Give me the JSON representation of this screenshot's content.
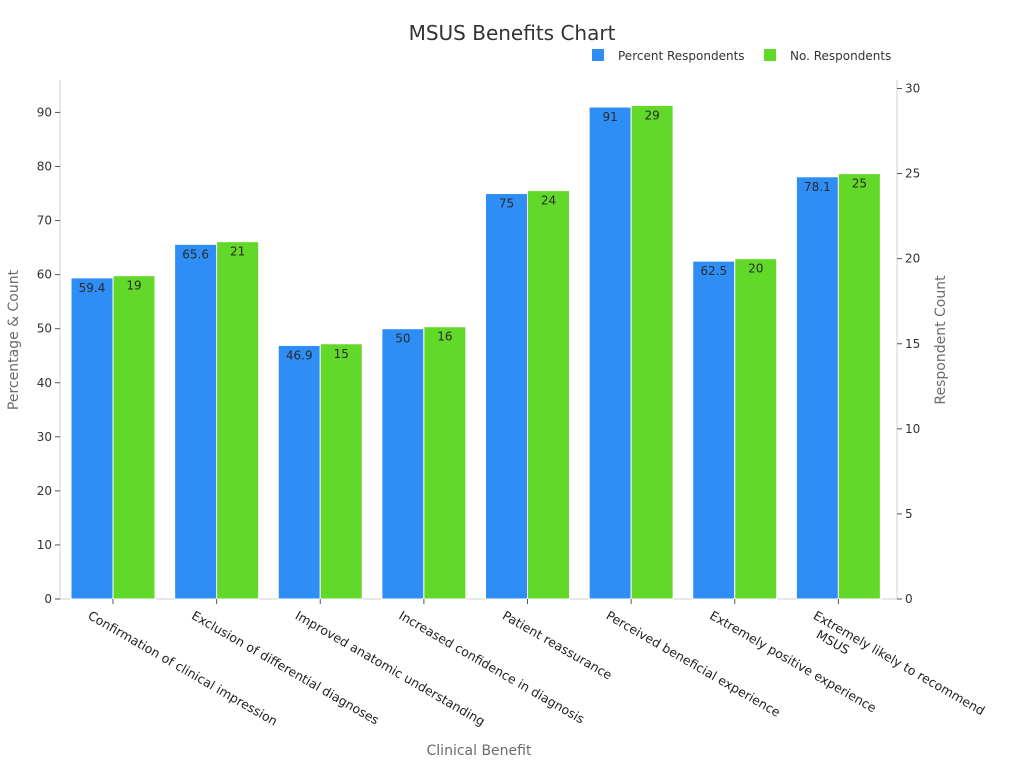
{
  "chart_data": {
    "type": "bar",
    "title": "MSUS Benefits Chart",
    "xlabel": "Clinical Benefit",
    "ylabel": "Percentage & Count",
    "y2label": "Respondent Count",
    "categories": [
      "Confirmation of clinical impression",
      "Exclusion of differential diagnoses",
      "Improved anatomic understanding",
      "Increased confidence in diagnosis",
      "Patient reassurance",
      "Perceived beneficial experience",
      "Extremely positive experience",
      "Extremely likely to recommend MSUS"
    ],
    "category_display": [
      [
        "Confirmation of clinical impression"
      ],
      [
        "Exclusion of differential diagnoses"
      ],
      [
        "Improved anatomic understanding"
      ],
      [
        "Increased confidence in diagnosis"
      ],
      [
        "Patient reassurance"
      ],
      [
        "Perceived beneficial experience"
      ],
      [
        "Extremely positive experience"
      ],
      [
        "Extremely likely to recommend",
        "MSUS"
      ]
    ],
    "series": [
      {
        "name": "Percent Respondents",
        "axis": "left",
        "color": "#2e8ef5",
        "values": [
          59.4,
          65.6,
          46.9,
          50,
          75,
          91,
          62.5,
          78.1
        ],
        "labels": [
          "59.4",
          "65.6",
          "46.9",
          "50",
          "75",
          "91",
          "62.5",
          "78.1"
        ]
      },
      {
        "name": "No. Respondents",
        "axis": "right",
        "color": "#62d928",
        "values": [
          19,
          21,
          15,
          16,
          24,
          29,
          20,
          25
        ],
        "labels": [
          "19",
          "21",
          "15",
          "16",
          "24",
          "29",
          "20",
          "25"
        ]
      }
    ],
    "ylim": [
      0,
      96
    ],
    "y2lim": [
      0,
      30.5
    ],
    "yticks": [
      0,
      10,
      20,
      30,
      40,
      50,
      60,
      70,
      80,
      90
    ],
    "y2ticks": [
      0,
      5,
      10,
      15,
      20,
      25,
      30
    ],
    "legend_position": "top-right",
    "grid": false
  }
}
